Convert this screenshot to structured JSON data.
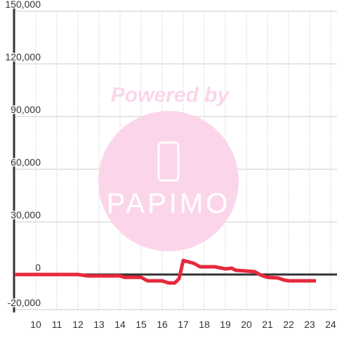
{
  "chart_data": {
    "type": "line",
    "watermark": [
      "Powered by",
      "PAPIMO"
    ],
    "x": [
      9,
      12,
      12.5,
      14,
      14.2,
      15,
      15.3,
      16,
      16.3,
      16.6,
      16.8,
      17,
      17.5,
      17.8,
      18.5,
      19,
      19.3,
      19.5,
      20,
      20.4,
      20.7,
      21,
      21.5,
      21.8,
      22,
      23.3
    ],
    "series": [
      {
        "color": "#e8283c",
        "values": [
          0,
          0,
          -800,
          -800,
          -1600,
          -1600,
          -3600,
          -3600,
          -4800,
          -4800,
          -2400,
          8000,
          6400,
          4400,
          4400,
          3200,
          3600,
          2400,
          2000,
          1600,
          -400,
          -1600,
          -2000,
          -3200,
          -3600,
          -3600
        ]
      }
    ],
    "xlim": [
      9,
      24.3
    ],
    "xticks": [
      10,
      11,
      12,
      13,
      14,
      15,
      16,
      17,
      18,
      19,
      20,
      21,
      22,
      23,
      24
    ],
    "ylim": [
      -20000,
      150000
    ],
    "yticks": [
      {
        "value": -20000,
        "label": "-20,000"
      },
      0,
      {
        "value": 30000,
        "label": "30,000"
      },
      {
        "value": 60000,
        "label": "60,000"
      },
      {
        "value": 90000,
        "label": "90,000"
      },
      {
        "value": 120000,
        "label": "120,000"
      },
      {
        "value": 150000,
        "label": "150,000"
      }
    ],
    "grid": true
  }
}
